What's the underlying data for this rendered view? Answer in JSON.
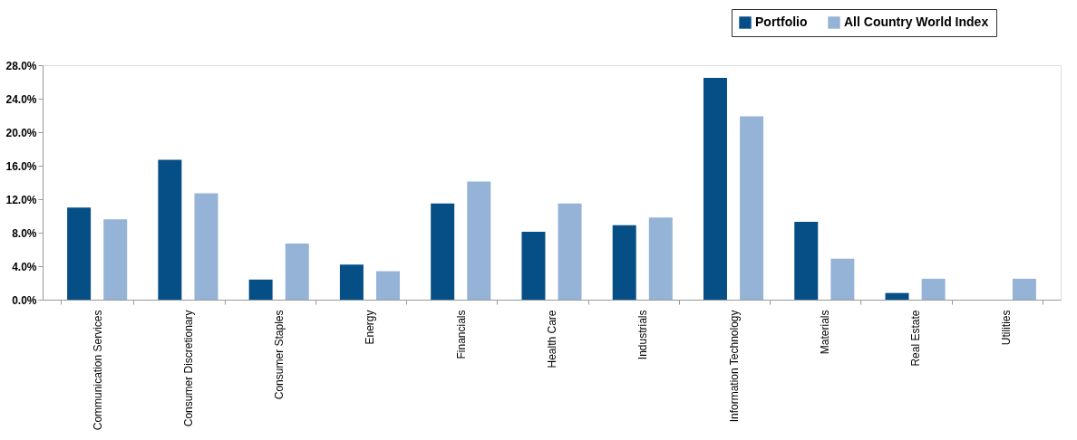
{
  "chart_data": {
    "type": "bar",
    "categories": [
      "Communication Services",
      "Consumer Discretionary",
      "Consumer Staples",
      "Energy",
      "Financials",
      "Health Care",
      "Industrials",
      "Information Technology",
      "Materials",
      "Real Estate",
      "Utilities"
    ],
    "series": [
      {
        "name": "Portfolio",
        "color": "#064f86",
        "values": [
          11.0,
          16.7,
          2.4,
          4.2,
          11.5,
          8.1,
          8.9,
          26.5,
          9.3,
          0.8,
          0
        ]
      },
      {
        "name": "All Country World Index",
        "color": "#95b3d7",
        "values": [
          9.6,
          12.7,
          6.7,
          3.4,
          14.1,
          11.5,
          9.8,
          21.9,
          4.9,
          2.5,
          2.5
        ]
      }
    ],
    "ylim": [
      0,
      28
    ],
    "yticks": [
      {
        "value": 0,
        "label": "0.0%"
      },
      {
        "value": 4,
        "label": "4.0%"
      },
      {
        "value": 8,
        "label": "8.0%"
      },
      {
        "value": 12,
        "label": "12.0%"
      },
      {
        "value": 16,
        "label": "16.0%"
      },
      {
        "value": 20,
        "label": "20.0%"
      },
      {
        "value": 24,
        "label": "24.0%"
      },
      {
        "value": 28,
        "label": "28.0%"
      }
    ],
    "grid": false,
    "legend": "top right"
  }
}
